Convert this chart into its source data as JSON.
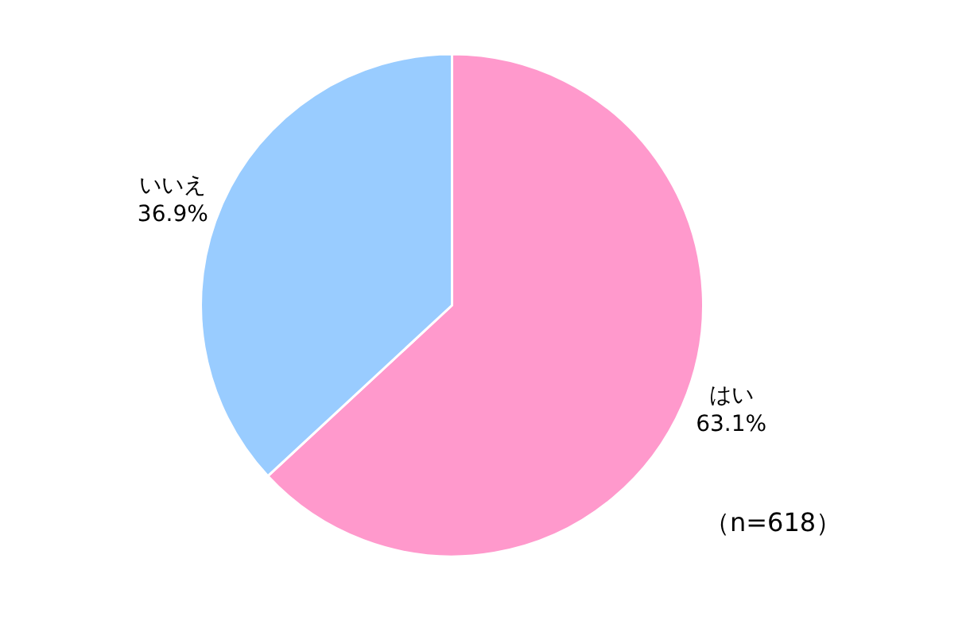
{
  "chart_data": {
    "type": "pie",
    "categories": [
      "はい",
      "いいえ"
    ],
    "values": [
      63.1,
      36.9
    ],
    "colors": [
      "#ff99cc",
      "#99ccff"
    ],
    "value_labels": [
      "63.1%",
      "36.9%"
    ],
    "annotations": [
      "（n=618）"
    ],
    "legend": false
  }
}
